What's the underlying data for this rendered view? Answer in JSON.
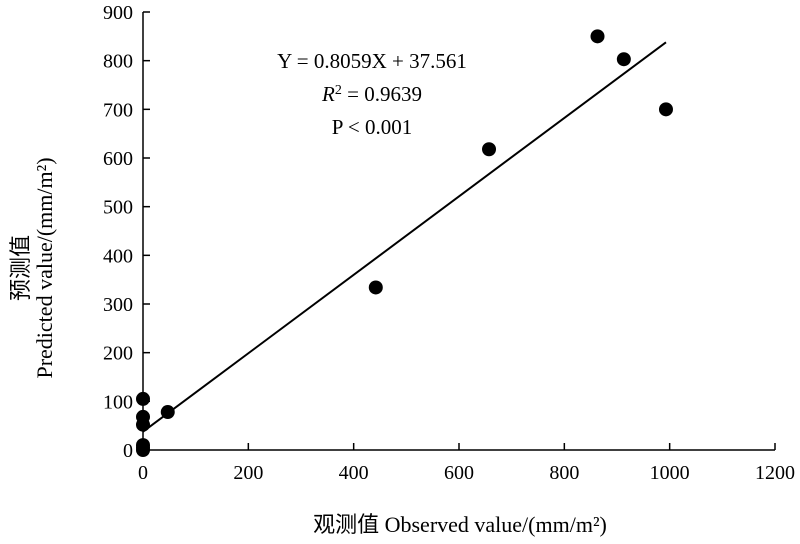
{
  "chart_data": {
    "type": "scatter",
    "xlabel": "观测值 Observed value/(mm/m²)",
    "ylabel_cn": "预测值",
    "ylabel_en": "Predicted value/(mm/m²)",
    "xlim": [
      0,
      1200
    ],
    "ylim": [
      0,
      900
    ],
    "xticks": [
      0,
      200,
      400,
      600,
      800,
      1000,
      1200
    ],
    "yticks": [
      0,
      100,
      200,
      300,
      400,
      500,
      600,
      700,
      800,
      900
    ],
    "grid": false,
    "series": [
      {
        "points": [
          {
            "x": 0,
            "y": 0
          },
          {
            "x": 0,
            "y": 5
          },
          {
            "x": 0,
            "y": 10
          },
          {
            "x": 0,
            "y": 52
          },
          {
            "x": 0,
            "y": 68
          },
          {
            "x": 0,
            "y": 105
          },
          {
            "x": 47,
            "y": 78
          },
          {
            "x": 442,
            "y": 334
          },
          {
            "x": 657,
            "y": 618
          },
          {
            "x": 863,
            "y": 850
          },
          {
            "x": 913,
            "y": 803
          },
          {
            "x": 993,
            "y": 700
          }
        ]
      }
    ],
    "fit_line": {
      "slope": 0.8059,
      "intercept": 37.561,
      "x_range": [
        0,
        993
      ]
    },
    "annotations": {
      "equation": "Y = 0.8059X + 37.561",
      "r2_prefix": "R",
      "r2_sup": "2",
      "r2_value": " = 0.9639",
      "p_value": "P < 0.001"
    }
  }
}
